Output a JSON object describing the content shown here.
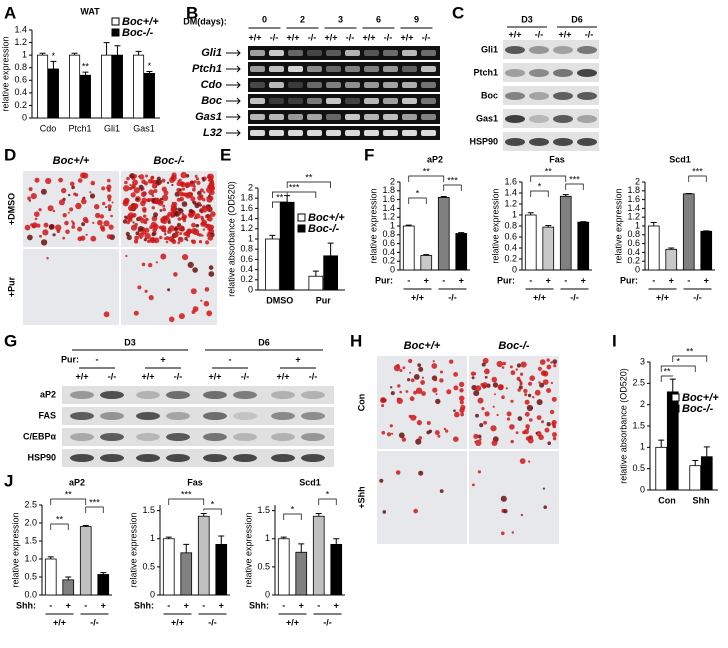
{
  "panel_labels": [
    "A",
    "B",
    "C",
    "D",
    "E",
    "F",
    "G",
    "H",
    "I",
    "J"
  ],
  "B": {
    "header": "DM(days):",
    "days": [
      "0",
      "2",
      "3",
      "6",
      "9"
    ],
    "genotypes": [
      "+/+",
      "-/-"
    ],
    "genes": [
      "Gli1",
      "Ptch1",
      "Cdo",
      "Boc",
      "Gas1",
      "L32"
    ]
  },
  "C": {
    "stages": [
      "D3",
      "D6"
    ],
    "genotypes": [
      "+/+",
      "-/-"
    ],
    "proteins": [
      "Gli1",
      "Ptch1",
      "Boc",
      "Gas1",
      "HSP90"
    ]
  },
  "D": {
    "columns": [
      "Boc+/+",
      "Boc-/-"
    ],
    "rows": [
      "+DMSO",
      "+Pur"
    ]
  },
  "G": {
    "stages": [
      "D3",
      "D6"
    ],
    "treatment": "Pur:",
    "signs": [
      "-",
      "+"
    ],
    "genotypes": [
      "+/+",
      "-/-"
    ],
    "proteins": [
      "aP2",
      "FAS",
      "C/EBPα",
      "HSP90"
    ]
  },
  "H": {
    "columns": [
      "Boc+/+",
      "Boc-/-"
    ],
    "rows": [
      "Con",
      "+Shh"
    ]
  },
  "chart_data": [
    {
      "type": "bar",
      "title": "WAT",
      "ylabel": "relative expression",
      "categories": [
        "Cdo",
        "Ptch1",
        "Gli1",
        "Gas1"
      ],
      "series": [
        {
          "name": "Boc+/+",
          "color": "#ffffff",
          "values": [
            1,
            1,
            1,
            1
          ],
          "errors": [
            0.03,
            0.03,
            0.2,
            0.06
          ]
        },
        {
          "name": "Boc-/-",
          "color": "#000000",
          "values": [
            0.78,
            0.68,
            1,
            0.71
          ],
          "errors": [
            0.12,
            0.05,
            0.15,
            0.03
          ]
        }
      ],
      "ylim": [
        0,
        1.4
      ],
      "yticks": [
        0,
        0.2,
        0.4,
        0.6,
        0.8,
        1,
        1.2,
        1.4
      ],
      "annotations": [
        "*",
        "**",
        "*"
      ]
    },
    {
      "type": "bar",
      "ylabel": "relative absorbance (OD520)",
      "categories": [
        "DMSO",
        "Pur"
      ],
      "series": [
        {
          "name": "Boc+/+",
          "color": "#ffffff",
          "values": [
            1,
            0.27
          ],
          "errors": [
            0.07,
            0.1
          ]
        },
        {
          "name": "Boc-/-",
          "color": "#000000",
          "values": [
            1.72,
            0.67
          ],
          "errors": [
            0.13,
            0.25
          ]
        }
      ],
      "ylim": [
        0,
        2
      ],
      "yticks": [
        0,
        0.2,
        0.4,
        0.6,
        0.8,
        1,
        1.2,
        1.4,
        1.6,
        1.8,
        2
      ],
      "annotations": [
        "**",
        "***",
        "**"
      ]
    },
    {
      "type": "bar",
      "title": "aP2",
      "ylabel": "relative expression",
      "xprefix": "Pur:",
      "categories": [
        "-",
        "+",
        "-",
        "+"
      ],
      "groups": [
        "+/+",
        "-/-"
      ],
      "values": [
        1,
        0.33,
        1.65,
        0.83
      ],
      "errors": [
        0.02,
        0.02,
        0.02,
        0.02
      ],
      "colors": [
        "#ffffff",
        "#c8c8c8",
        "#808080",
        "#000000"
      ],
      "ylim": [
        0,
        2
      ],
      "yticks": [
        0,
        0.2,
        0.4,
        0.6,
        0.8,
        1,
        1.2,
        1.4,
        1.6,
        1.8,
        2
      ],
      "annotations": [
        "*",
        "**",
        "***"
      ]
    },
    {
      "type": "bar",
      "title": "Fas",
      "ylabel": "relative expression",
      "xprefix": "Pur:",
      "categories": [
        "-",
        "+",
        "-",
        "+"
      ],
      "groups": [
        "+/+",
        "-/-"
      ],
      "values": [
        1,
        0.78,
        1.34,
        0.87
      ],
      "errors": [
        0.04,
        0.03,
        0.03,
        0.01
      ],
      "colors": [
        "#ffffff",
        "#c8c8c8",
        "#808080",
        "#000000"
      ],
      "ylim": [
        0,
        1.6
      ],
      "yticks": [
        0,
        0.2,
        0.4,
        0.6,
        0.8,
        1,
        1.2,
        1.4,
        1.6
      ],
      "annotations": [
        "*",
        "**",
        "***"
      ]
    },
    {
      "type": "bar",
      "title": "Scd1",
      "ylabel": "relative expression",
      "xprefix": "Pur:",
      "categories": [
        "-",
        "+",
        "-",
        "+"
      ],
      "groups": [
        "+/+",
        "-/-"
      ],
      "values": [
        1,
        0.47,
        1.73,
        0.88
      ],
      "errors": [
        0.08,
        0.03,
        0.01,
        0.01
      ],
      "colors": [
        "#ffffff",
        "#c8c8c8",
        "#808080",
        "#000000"
      ],
      "ylim": [
        0,
        2
      ],
      "yticks": [
        0,
        0.2,
        0.4,
        0.6,
        0.8,
        1,
        1.2,
        1.4,
        1.6,
        1.8,
        2
      ],
      "annotations": [
        "***"
      ]
    },
    {
      "type": "bar",
      "ylabel": "relative absorbance (OD520)",
      "categories": [
        "Con",
        "Shh"
      ],
      "series": [
        {
          "name": "Boc+/+",
          "color": "#ffffff",
          "values": [
            1,
            0.57
          ],
          "errors": [
            0.17,
            0.12
          ]
        },
        {
          "name": "Boc-/-",
          "color": "#000000",
          "values": [
            2.3,
            0.78
          ],
          "errors": [
            0.3,
            0.23
          ]
        }
      ],
      "ylim": [
        0,
        3
      ],
      "yticks": [
        0,
        0.5,
        1,
        1.5,
        2,
        2.5,
        3
      ],
      "annotations": [
        "**",
        "*",
        "**"
      ]
    },
    {
      "type": "bar",
      "title": "aP2",
      "ylabel": "relative expression",
      "xprefix": "Shh:",
      "categories": [
        "-",
        "+",
        "-",
        "+"
      ],
      "groups": [
        "+/+",
        "-/-"
      ],
      "values": [
        1,
        0.42,
        1.9,
        0.57
      ],
      "errors": [
        0.06,
        0.08,
        0.03,
        0.05
      ],
      "colors": [
        "#ffffff",
        "#808080",
        "#c0c0c0",
        "#000000"
      ],
      "ylim": [
        0,
        2.5
      ],
      "yticks": [
        {
          "value": 0,
          "label": "0.0"
        },
        {
          "value": 0.5,
          "label": "0.5"
        },
        {
          "value": 1,
          "label": "1.0"
        },
        {
          "value": 1.5,
          "label": "1.5"
        },
        {
          "value": 2,
          "label": "2.0"
        },
        {
          "value": 2.5,
          "label": "2.5"
        }
      ],
      "annotations": [
        "**",
        "**",
        "***"
      ]
    },
    {
      "type": "bar",
      "title": "Fas",
      "ylabel": "relative expression",
      "xprefix": "Shh:",
      "categories": [
        "-",
        "+",
        "-",
        "+"
      ],
      "groups": [
        "+/+",
        "-/-"
      ],
      "values": [
        1,
        0.75,
        1.4,
        0.9
      ],
      "errors": [
        0.03,
        0.15,
        0.05,
        0.15
      ],
      "colors": [
        "#ffffff",
        "#808080",
        "#c0c0c0",
        "#000000"
      ],
      "ylim": [
        0,
        1.6
      ],
      "yticks": [
        0,
        0.5,
        1,
        1.5
      ],
      "annotations": [
        "***",
        "*"
      ]
    },
    {
      "type": "bar",
      "title": "Scd1",
      "ylabel": "relative expression",
      "xprefix": "Shh:",
      "categories": [
        "-",
        "+",
        "-",
        "+"
      ],
      "groups": [
        "+/+",
        "-/-"
      ],
      "values": [
        1,
        0.76,
        1.4,
        0.9
      ],
      "errors": [
        0.03,
        0.15,
        0.05,
        0.1
      ],
      "colors": [
        "#ffffff",
        "#808080",
        "#c0c0c0",
        "#000000"
      ],
      "ylim": [
        0,
        1.6
      ],
      "yticks": [
        0,
        0.5,
        1,
        1.5
      ],
      "annotations": [
        "*",
        "*"
      ]
    }
  ]
}
